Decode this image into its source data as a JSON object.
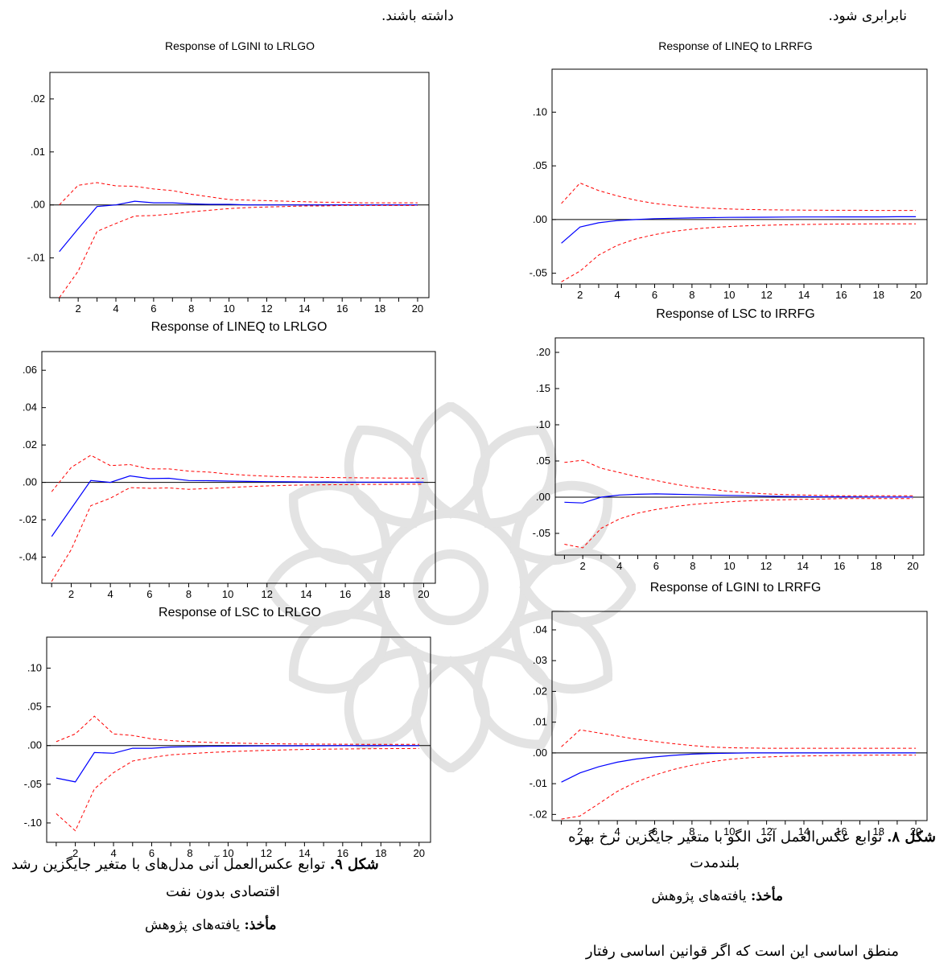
{
  "page": {
    "top_right_text": "نابرابری شود.",
    "top_left_text": "داشته باشند.",
    "fig8_caption": {
      "bold": "شکل ۸.",
      "line1": " توابع عکس‌العمل آنی الگو با متغیر جایگزین نرخ بهره",
      "line2": "بلندمدت",
      "source_bold": "مأخذ:",
      "source": " یافته‌های پژوهش"
    },
    "fig9_caption": {
      "bold": "شکل ۹.",
      "line1": " توابع عکس‌العمل آنی مدل‌های با متغیر جایگزین رشد",
      "line2": "اقتصادی بدون نفت",
      "source_bold": "مأخذ:",
      "source": " یافته‌های پژوهش"
    },
    "bottom_text": "منطق اساسی این است که اگر قوانین اساسی رفتار"
  },
  "colors": {
    "response": "#0000ff",
    "band": "#ff0000",
    "zero": "#000000",
    "frame": "#000000"
  },
  "chart_data": [
    {
      "id": "lineq_lrrfg",
      "type": "line",
      "title": "Response of LINEQ to LRRFG",
      "x": [
        1,
        2,
        3,
        4,
        5,
        6,
        7,
        8,
        9,
        10,
        11,
        12,
        13,
        14,
        15,
        16,
        17,
        18,
        19,
        20
      ],
      "xticks": [
        2,
        4,
        6,
        8,
        10,
        12,
        14,
        16,
        18,
        20
      ],
      "ylim": [
        -0.06,
        0.14
      ],
      "yticks": [
        -0.05,
        0,
        0.05,
        0.1
      ],
      "yticklabels": [
        "-.05",
        ".00",
        ".05",
        ".10"
      ],
      "series": [
        {
          "role": "response",
          "values": [
            -0.022,
            -0.007,
            -0.003,
            -0.001,
            0,
            0.0008,
            0.0012,
            0.0015,
            0.0018,
            0.002,
            0.0021,
            0.0022,
            0.0023,
            0.0024,
            0.0024,
            0.0025,
            0.0025,
            0.0025,
            0.0026,
            0.0026
          ]
        },
        {
          "role": "upper",
          "values": [
            0.015,
            0.034,
            0.027,
            0.022,
            0.018,
            0.015,
            0.013,
            0.0115,
            0.0105,
            0.0098,
            0.0094,
            0.0091,
            0.0089,
            0.0088,
            0.0087,
            0.0086,
            0.0086,
            0.0085,
            0.0085,
            0.0085
          ]
        },
        {
          "role": "lower",
          "values": [
            -0.058,
            -0.048,
            -0.033,
            -0.024,
            -0.018,
            -0.014,
            -0.011,
            -0.009,
            -0.0075,
            -0.0065,
            -0.0058,
            -0.0053,
            -0.0049,
            -0.0046,
            -0.0044,
            -0.0042,
            -0.0041,
            -0.004,
            -0.004,
            -0.004
          ]
        }
      ]
    },
    {
      "id": "lsc_irrfg",
      "type": "line",
      "title": "Response of LSC to IRRFG",
      "x": [
        1,
        2,
        3,
        4,
        5,
        6,
        7,
        8,
        9,
        10,
        11,
        12,
        13,
        14,
        15,
        16,
        17,
        18,
        19,
        20
      ],
      "xticks": [
        2,
        4,
        6,
        8,
        10,
        12,
        14,
        16,
        18,
        20
      ],
      "ylim": [
        -0.08,
        0.22
      ],
      "yticks": [
        -0.05,
        0,
        0.05,
        0.1,
        0.15,
        0.2
      ],
      "yticklabels": [
        "-.05",
        ".00",
        ".05",
        ".10",
        ".15",
        ".20"
      ],
      "series": [
        {
          "role": "response",
          "values": [
            -0.007,
            -0.008,
            0,
            0.003,
            0.004,
            0.0045,
            0.004,
            0.0035,
            0.003,
            0.0025,
            0.002,
            0.0015,
            0.001,
            0.0008,
            0.0006,
            0.0004,
            0.0003,
            0.0002,
            0.0001,
            0.0001
          ]
        },
        {
          "role": "upper",
          "values": [
            0.048,
            0.051,
            0.04,
            0.034,
            0.028,
            0.023,
            0.018,
            0.014,
            0.011,
            0.008,
            0.006,
            0.0045,
            0.0035,
            0.003,
            0.0025,
            0.002,
            0.002,
            0.002,
            0.002,
            0.002
          ]
        },
        {
          "role": "lower",
          "values": [
            -0.065,
            -0.07,
            -0.043,
            -0.03,
            -0.022,
            -0.017,
            -0.013,
            -0.01,
            -0.008,
            -0.0065,
            -0.005,
            -0.004,
            -0.0035,
            -0.003,
            -0.0025,
            -0.002,
            -0.002,
            -0.002,
            -0.002,
            -0.002
          ]
        }
      ]
    },
    {
      "id": "lgini_lrrfg",
      "type": "line",
      "title": "Response of LGINI to LRRFG",
      "x": [
        1,
        2,
        3,
        4,
        5,
        6,
        7,
        8,
        9,
        10,
        11,
        12,
        13,
        14,
        15,
        16,
        17,
        18,
        19,
        20
      ],
      "xticks": [
        2,
        4,
        6,
        8,
        10,
        12,
        14,
        16,
        18,
        20
      ],
      "ylim": [
        -0.022,
        0.046
      ],
      "yticks": [
        -0.02,
        -0.01,
        0,
        0.01,
        0.02,
        0.03,
        0.04
      ],
      "yticklabels": [
        "-.02",
        "-.01",
        ".00",
        ".01",
        ".02",
        ".03",
        ".04"
      ],
      "series": [
        {
          "role": "response",
          "values": [
            -0.0095,
            -0.0065,
            -0.0045,
            -0.003,
            -0.002,
            -0.0013,
            -0.0008,
            -0.0004,
            -0.0002,
            -0.0001,
            0,
            0,
            0,
            0,
            0,
            0,
            0,
            0,
            0,
            0
          ]
        },
        {
          "role": "upper",
          "values": [
            0.002,
            0.0075,
            0.0065,
            0.0055,
            0.0045,
            0.0037,
            0.003,
            0.0024,
            0.0019,
            0.0017,
            0.0016,
            0.0015,
            0.0015,
            0.0015,
            0.0015,
            0.0015,
            0.0015,
            0.0015,
            0.0015,
            0.0015
          ]
        },
        {
          "role": "lower",
          "values": [
            -0.0215,
            -0.0205,
            -0.0165,
            -0.0125,
            -0.0095,
            -0.0072,
            -0.0054,
            -0.004,
            -0.0029,
            -0.0021,
            -0.0016,
            -0.0013,
            -0.0011,
            -0.001,
            -0.0009,
            -0.0008,
            -0.0008,
            -0.0007,
            -0.0007,
            -0.0007
          ]
        }
      ]
    },
    {
      "id": "lgini_lrlgo",
      "type": "line",
      "title": "Response of LGINI to LRLGO",
      "x": [
        1,
        2,
        3,
        4,
        5,
        6,
        7,
        8,
        9,
        10,
        11,
        12,
        13,
        14,
        15,
        16,
        17,
        18,
        19,
        20
      ],
      "xticks": [
        2,
        4,
        6,
        8,
        10,
        12,
        14,
        16,
        18,
        20
      ],
      "ylim": [
        -0.0175,
        0.025
      ],
      "yticks": [
        -0.01,
        0,
        0.01,
        0.02
      ],
      "yticklabels": [
        "-.01",
        ".00",
        ".01",
        ".02"
      ],
      "series": [
        {
          "role": "response",
          "values": [
            -0.0088,
            -0.0045,
            -0.0003,
            0,
            0.0007,
            0.0004,
            0.0004,
            0.0002,
            0.0001,
            0.0001,
            0,
            0,
            0,
            0,
            0,
            0,
            0,
            0,
            0,
            0
          ]
        },
        {
          "role": "upper",
          "values": [
            0,
            0.0037,
            0.0042,
            0.0036,
            0.0035,
            0.003,
            0.0027,
            0.002,
            0.0015,
            0.001,
            0.0009,
            0.0008,
            0.0007,
            0.0006,
            0.0005,
            0.0005,
            0.0004,
            0.0004,
            0.0004,
            0.0004
          ]
        },
        {
          "role": "lower",
          "values": [
            -0.0175,
            -0.0125,
            -0.005,
            -0.0035,
            -0.0021,
            -0.002,
            -0.0017,
            -0.0013,
            -0.001,
            -0.0007,
            -0.0005,
            -0.0004,
            -0.0003,
            -0.0002,
            -0.0002,
            -0.0001,
            -0.0001,
            -0.0001,
            -0.0001,
            -0.0001
          ]
        }
      ]
    },
    {
      "id": "lineq_lrlgo",
      "type": "line",
      "title": "Response of LINEQ to LRLGO",
      "x": [
        1,
        2,
        3,
        4,
        5,
        6,
        7,
        8,
        9,
        10,
        11,
        12,
        13,
        14,
        15,
        16,
        17,
        18,
        19,
        20
      ],
      "xticks": [
        2,
        4,
        6,
        8,
        10,
        12,
        14,
        16,
        18,
        20
      ],
      "ylim": [
        -0.054,
        0.07
      ],
      "yticks": [
        -0.04,
        -0.02,
        0,
        0.02,
        0.04,
        0.06
      ],
      "yticklabels": [
        "-.04",
        "-.02",
        ".00",
        ".02",
        ".04",
        ".06"
      ],
      "series": [
        {
          "role": "response",
          "values": [
            -0.029,
            -0.014,
            0.001,
            0,
            0.0035,
            0.002,
            0.0022,
            0.001,
            0.0009,
            0.0007,
            0.0005,
            0.0004,
            0.0003,
            0.0002,
            0.0002,
            0.0001,
            0.0001,
            0.0001,
            0.0001,
            0.0001
          ]
        },
        {
          "role": "upper",
          "values": [
            -0.005,
            0.008,
            0.0145,
            0.009,
            0.0095,
            0.0072,
            0.0072,
            0.006,
            0.0055,
            0.0045,
            0.0038,
            0.0033,
            0.003,
            0.0028,
            0.0026,
            0.0025,
            0.0024,
            0.0023,
            0.0023,
            0.0022
          ]
        },
        {
          "role": "lower",
          "values": [
            -0.053,
            -0.036,
            -0.0125,
            -0.0085,
            -0.0028,
            -0.0032,
            -0.003,
            -0.0037,
            -0.0033,
            -0.0028,
            -0.0023,
            -0.0019,
            -0.0016,
            -0.0014,
            -0.0013,
            -0.0012,
            -0.0011,
            -0.0011,
            -0.001,
            -0.001
          ]
        }
      ]
    },
    {
      "id": "lsc_lrlgo",
      "type": "line",
      "title": "Response of LSC to LRLGO",
      "x": [
        1,
        2,
        3,
        4,
        5,
        6,
        7,
        8,
        9,
        10,
        11,
        12,
        13,
        14,
        15,
        16,
        17,
        18,
        19,
        20
      ],
      "xticks": [
        2,
        4,
        6,
        8,
        10,
        12,
        14,
        16,
        18,
        20
      ],
      "ylim": [
        -0.125,
        0.14
      ],
      "yticks": [
        -0.1,
        -0.05,
        0,
        0.05,
        0.1
      ],
      "yticklabels": [
        "-.10",
        "-.05",
        ".00",
        ".05",
        ".10"
      ],
      "series": [
        {
          "role": "response",
          "values": [
            -0.042,
            -0.047,
            -0.009,
            -0.01,
            -0.0035,
            -0.0035,
            -0.002,
            -0.0015,
            -0.001,
            -0.0008,
            -0.0006,
            -0.0005,
            -0.0004,
            -0.0003,
            -0.0003,
            -0.0002,
            -0.0002,
            -0.0002,
            -0.0002,
            -0.0002
          ]
        },
        {
          "role": "upper",
          "values": [
            0.005,
            0.015,
            0.038,
            0.015,
            0.013,
            0.0085,
            0.0065,
            0.005,
            0.004,
            0.0033,
            0.0028,
            0.0024,
            0.0021,
            0.0019,
            0.0018,
            0.0017,
            0.0016,
            0.0016,
            0.0015,
            0.0015
          ]
        },
        {
          "role": "lower",
          "values": [
            -0.088,
            -0.11,
            -0.056,
            -0.035,
            -0.02,
            -0.0155,
            -0.012,
            -0.0105,
            -0.009,
            -0.008,
            -0.007,
            -0.0062,
            -0.0056,
            -0.0051,
            -0.0047,
            -0.0044,
            -0.0042,
            -0.004,
            -0.0039,
            -0.0038
          ]
        }
      ]
    }
  ]
}
